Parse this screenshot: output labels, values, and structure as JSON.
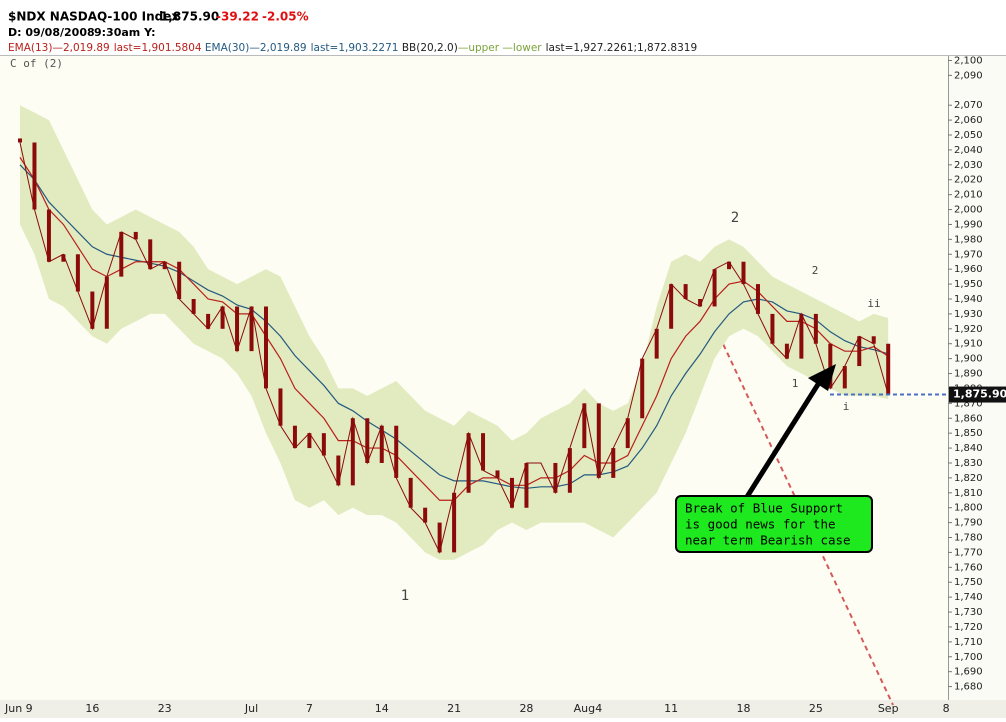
{
  "header": {
    "symbol": "$NDX NASDAQ-100 Index",
    "last": "1,875.90",
    "change": "-39.22",
    "change_pct": "-2.05%",
    "date": "D: 09/08/2008",
    "time": "9:30am Y:",
    "study": "C of (2)"
  },
  "chart_data": {
    "type": "line",
    "categories": [
      "Jun 9",
      null,
      null,
      null,
      null,
      "16",
      null,
      null,
      null,
      null,
      "23",
      null,
      null,
      null,
      null,
      null,
      "Jul",
      null,
      null,
      null,
      "7",
      null,
      null,
      null,
      null,
      "14",
      null,
      null,
      null,
      null,
      "21",
      null,
      null,
      null,
      null,
      "28",
      null,
      null,
      null,
      "Aug",
      "4",
      null,
      null,
      null,
      null,
      "11",
      null,
      null,
      null,
      null,
      "18",
      null,
      null,
      null,
      null,
      "25",
      null,
      null,
      null,
      null,
      "Sep",
      null,
      null,
      null,
      "8"
    ],
    "price": {
      "color": "#8b0a0a",
      "last_label": "1,875.90",
      "support_color": "#4a6fc4",
      "values": [
        2045,
        2000,
        1965,
        1970,
        1945,
        1920,
        1955,
        1985,
        1980,
        1960,
        1965,
        1940,
        1930,
        1920,
        1935,
        1905,
        1935,
        1880,
        1855,
        1840,
        1850,
        1835,
        1815,
        1860,
        1830,
        1855,
        1820,
        1800,
        1790,
        1770,
        1810,
        1850,
        1825,
        1820,
        1800,
        1830,
        1830,
        1810,
        1840,
        1870,
        1820,
        1840,
        1860,
        1900,
        1920,
        1950,
        1940,
        1935,
        1960,
        1965,
        1950,
        1930,
        1910,
        1900,
        1930,
        1910,
        1880,
        1895,
        1915,
        1910,
        1875.9,
        null,
        null,
        null,
        null
      ]
    },
    "series": [
      {
        "name": "EMA(13)",
        "color": "#b8201c",
        "start_label": "2,019.89",
        "last_label": "last=1,901.5804",
        "values": [
          2035,
          2020,
          2000,
          1990,
          1975,
          1960,
          1955,
          1960,
          1965,
          1965,
          1965,
          1960,
          1950,
          1940,
          1938,
          1930,
          1930,
          1915,
          1900,
          1880,
          1870,
          1860,
          1845,
          1845,
          1840,
          1840,
          1835,
          1825,
          1815,
          1805,
          1805,
          1815,
          1820,
          1820,
          1815,
          1815,
          1820,
          1820,
          1825,
          1835,
          1830,
          1830,
          1835,
          1855,
          1875,
          1900,
          1915,
          1925,
          1940,
          1950,
          1952,
          1945,
          1935,
          1925,
          1925,
          1920,
          1910,
          1905,
          1905,
          1908,
          1901.58,
          null,
          null,
          null,
          null
        ]
      },
      {
        "name": "EMA(30)",
        "color": "#245a80",
        "start_label": "2,019.89",
        "last_label": "last=1,903.2271",
        "values": [
          2030,
          2020,
          2005,
          1995,
          1985,
          1975,
          1970,
          1968,
          1966,
          1964,
          1962,
          1958,
          1952,
          1946,
          1942,
          1936,
          1933,
          1925,
          1915,
          1902,
          1892,
          1882,
          1870,
          1865,
          1858,
          1852,
          1846,
          1838,
          1830,
          1822,
          1818,
          1818,
          1818,
          1816,
          1814,
          1813,
          1814,
          1814,
          1816,
          1822,
          1822,
          1824,
          1828,
          1840,
          1855,
          1875,
          1890,
          1903,
          1918,
          1930,
          1938,
          1940,
          1938,
          1932,
          1930,
          1926,
          1918,
          1912,
          1908,
          1906,
          1903.23,
          null,
          null,
          null,
          null
        ]
      },
      {
        "name": "upper",
        "color": "#7aa33a",
        "values": [
          2070,
          2065,
          2060,
          2040,
          2020,
          2000,
          1990,
          1995,
          2000,
          1995,
          1990,
          1985,
          1975,
          1960,
          1955,
          1950,
          1955,
          1960,
          1955,
          1935,
          1915,
          1900,
          1880,
          1880,
          1875,
          1880,
          1885,
          1875,
          1865,
          1860,
          1855,
          1865,
          1860,
          1855,
          1845,
          1850,
          1860,
          1865,
          1870,
          1880,
          1870,
          1865,
          1870,
          1895,
          1935,
          1965,
          1970,
          1965,
          1975,
          1980,
          1975,
          1965,
          1955,
          1950,
          1945,
          1940,
          1935,
          1930,
          1925,
          1930,
          1927.23,
          null,
          null,
          null,
          null
        ]
      },
      {
        "name": "lower",
        "color": "#7aa33a",
        "values": [
          1990,
          1970,
          1940,
          1935,
          1925,
          1915,
          1910,
          1920,
          1925,
          1930,
          1930,
          1920,
          1910,
          1905,
          1900,
          1890,
          1875,
          1850,
          1830,
          1805,
          1800,
          1805,
          1795,
          1800,
          1795,
          1795,
          1790,
          1780,
          1770,
          1765,
          1765,
          1770,
          1775,
          1785,
          1790,
          1785,
          1790,
          1790,
          1790,
          1790,
          1785,
          1780,
          1790,
          1800,
          1810,
          1830,
          1850,
          1875,
          1900,
          1915,
          1920,
          1915,
          1905,
          1895,
          1890,
          1885,
          1880,
          1875,
          1875,
          1875,
          1872.83,
          null,
          null,
          null,
          null
        ]
      }
    ],
    "band": {
      "label": "BB(20,2.0)",
      "last_label": "last=1,927.2261;1,872.8319",
      "fill": "#e2ebc0"
    },
    "ylim": [
      1671,
      2103
    ],
    "yticks": [
      {
        "value": 1680,
        "label": "1,680"
      },
      {
        "value": 1690,
        "label": "1,690"
      },
      {
        "value": 1700,
        "label": "1,700"
      },
      {
        "value": 1710,
        "label": "1,710"
      },
      {
        "value": 1720,
        "label": "1,720"
      },
      {
        "value": 1730,
        "label": "1,730"
      },
      {
        "value": 1740,
        "label": "1,740"
      },
      {
        "value": 1750,
        "label": "1,750"
      },
      {
        "value": 1760,
        "label": "1,760"
      },
      {
        "value": 1770,
        "label": "1,770"
      },
      {
        "value": 1780,
        "label": "1,780"
      },
      {
        "value": 1790,
        "label": "1,790"
      },
      {
        "value": 1800,
        "label": "1,800"
      },
      {
        "value": 1810,
        "label": "1,810"
      },
      {
        "value": 1820,
        "label": "1,820"
      },
      {
        "value": 1830,
        "label": "1,830"
      },
      {
        "value": 1840,
        "label": "1,840"
      },
      {
        "value": 1850,
        "label": "1,850"
      },
      {
        "value": 1860,
        "label": "1,860"
      },
      {
        "value": 1870,
        "label": "1,870"
      },
      {
        "value": 1880,
        "label": "1,880"
      },
      {
        "value": 1890,
        "label": "1,890"
      },
      {
        "value": 1900,
        "label": "1,900"
      },
      {
        "value": 1910,
        "label": "1,910"
      },
      {
        "value": 1920,
        "label": "1,920"
      },
      {
        "value": 1930,
        "label": "1,930"
      },
      {
        "value": 1940,
        "label": "1,940"
      },
      {
        "value": 1950,
        "label": "1,950"
      },
      {
        "value": 1960,
        "label": "1,960"
      },
      {
        "value": 1970,
        "label": "1,970"
      },
      {
        "value": 1980,
        "label": "1,980"
      },
      {
        "value": 1990,
        "label": "1,990"
      },
      {
        "value": 2000,
        "label": "2,000"
      },
      {
        "value": 2010,
        "label": "2,010"
      },
      {
        "value": 2020,
        "label": "2,020"
      },
      {
        "value": 2030,
        "label": "2,030"
      },
      {
        "value": 2040,
        "label": "2,040"
      },
      {
        "value": 2050,
        "label": "2,050"
      },
      {
        "value": 2060,
        "label": "2,060"
      },
      {
        "value": 2070,
        "label": "2,070"
      },
      {
        "value": 2090,
        "label": "2,090"
      },
      {
        "value": 2100,
        "label": "2,100"
      }
    ],
    "annotations": [
      "2",
      "2",
      "ii",
      "1",
      "i",
      "1"
    ],
    "callout": [
      "Break of Blue Support",
      "is good news for the",
      "near term Bearish case"
    ]
  }
}
